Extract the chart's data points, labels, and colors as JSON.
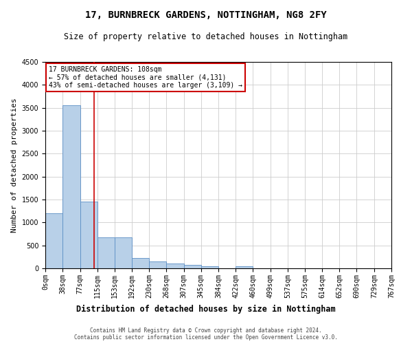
{
  "title": "17, BURNBRECK GARDENS, NOTTINGHAM, NG8 2FY",
  "subtitle": "Size of property relative to detached houses in Nottingham",
  "xlabel": "Distribution of detached houses by size in Nottingham",
  "ylabel": "Number of detached properties",
  "bin_edges": [
    0,
    38,
    77,
    115,
    153,
    192,
    230,
    268,
    307,
    345,
    384,
    422,
    460,
    499,
    537,
    575,
    614,
    652,
    690,
    729,
    767
  ],
  "bar_heights": [
    1200,
    3550,
    1450,
    680,
    680,
    230,
    150,
    100,
    70,
    50,
    0,
    50,
    0,
    0,
    0,
    0,
    0,
    0,
    0,
    0
  ],
  "bar_color": "#b8d0e8",
  "bar_edge_color": "#5b8ec4",
  "property_line_x": 108,
  "property_line_color": "#cc0000",
  "ylim": [
    0,
    4500
  ],
  "yticks": [
    0,
    500,
    1000,
    1500,
    2000,
    2500,
    3000,
    3500,
    4000,
    4500
  ],
  "annotation_text": "17 BURNBRECK GARDENS: 108sqm\n← 57% of detached houses are smaller (4,131)\n43% of semi-detached houses are larger (3,109) →",
  "annotation_box_color": "#cc0000",
  "footer_line1": "Contains HM Land Registry data © Crown copyright and database right 2024.",
  "footer_line2": "Contains public sector information licensed under the Open Government Licence v3.0.",
  "background_color": "#ffffff",
  "grid_color": "#cccccc",
  "title_fontsize": 10,
  "subtitle_fontsize": 8.5,
  "ylabel_fontsize": 8,
  "xlabel_fontsize": 8.5,
  "tick_fontsize": 7,
  "annotation_fontsize": 7,
  "footer_fontsize": 5.5
}
